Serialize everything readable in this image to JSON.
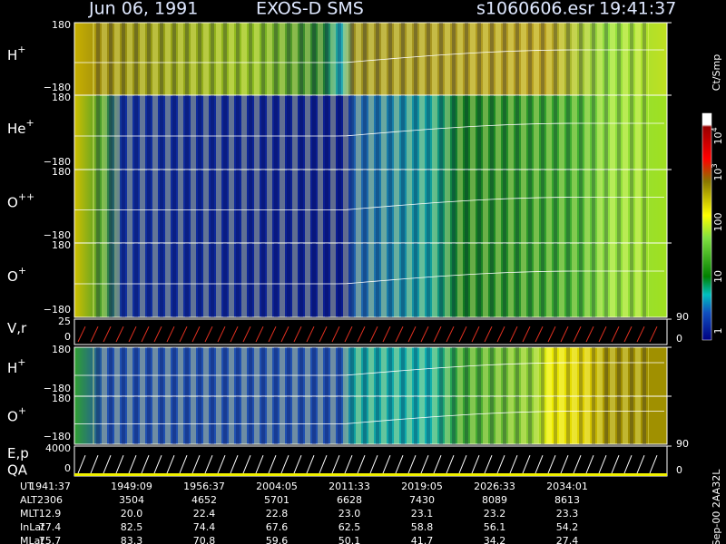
{
  "header": {
    "date": "Jun 06, 1991",
    "instrument": "EXOS-D SMS",
    "file": "s1060606.esr",
    "time": "19:41:37"
  },
  "panels": [
    {
      "label": "H",
      "sup": "+",
      "ticks": [
        "180",
        "−180"
      ]
    },
    {
      "label": "He",
      "sup": "+",
      "ticks": [
        "180",
        "−180"
      ]
    },
    {
      "label": "O",
      "sup": "++",
      "ticks": [
        "180",
        "−180"
      ]
    },
    {
      "label": "O",
      "sup": "+",
      "ticks": [
        "180",
        "−180"
      ]
    },
    {
      "label": "V,r",
      "ticks": [
        "25",
        "0"
      ],
      "right_ticks": [
        "90",
        "0"
      ]
    },
    {
      "label": "H",
      "sup": "+",
      "ticks": [
        "180",
        "−180"
      ]
    },
    {
      "label": "O",
      "sup": "+",
      "ticks": [
        "180",
        "−180"
      ]
    },
    {
      "label": "E,p",
      "label2": "QA",
      "ticks": [
        "4000",
        "0"
      ],
      "right_ticks": [
        "90",
        "0"
      ]
    }
  ],
  "colorbar": {
    "title": "Ct/Smp",
    "labels": [
      {
        "base": "10",
        "exp": "4"
      },
      {
        "base": "10",
        "exp": "3"
      },
      {
        "base": "100"
      },
      {
        "base": "10"
      },
      {
        "base": "1"
      }
    ]
  },
  "footer": {
    "rows": [
      {
        "label": "UT",
        "values": [
          "1941:37",
          "1949:09",
          "1956:37",
          "2004:05",
          "2011:33",
          "2019:05",
          "2026:33",
          "2034:01"
        ]
      },
      {
        "label": "ALT",
        "values": [
          "2306",
          "3504",
          "4652",
          "5701",
          "6628",
          "7430",
          "8089",
          "8613"
        ]
      },
      {
        "label": "MLT",
        "values": [
          "12.9",
          "20.0",
          "22.4",
          "22.8",
          "23.0",
          "23.1",
          "23.2",
          "23.3"
        ]
      },
      {
        "label": "InLat",
        "values": [
          "77.4",
          "82.5",
          "74.4",
          "67.6",
          "62.5",
          "58.8",
          "56.1",
          "54.2"
        ]
      },
      {
        "label": "MLat",
        "values": [
          "75.7",
          "83.3",
          "70.8",
          "59.6",
          "50.1",
          "41.7",
          "34.2",
          "27.4"
        ]
      }
    ]
  },
  "stamp": "Sep-00 2AA32L"
}
